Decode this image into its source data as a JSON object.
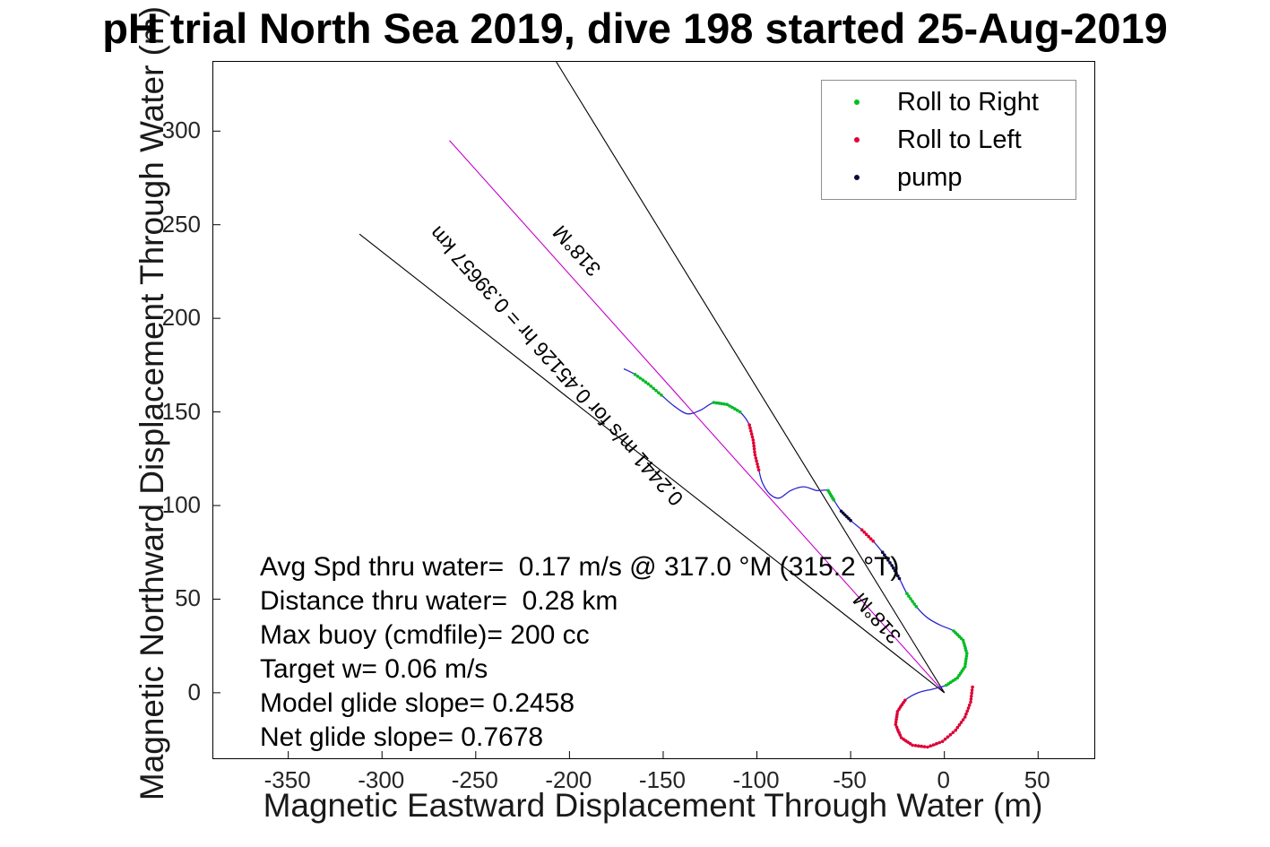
{
  "title": "pH trial North Sea 2019, dive 198 started 25-Aug-2019",
  "chart_data": {
    "type": "scatter",
    "title": "pH trial North Sea 2019, dive 198 started 25-Aug-2019",
    "xlabel": "Magnetic Eastward Displacement Through Water (m)",
    "ylabel": "Magnetic Northward Displacement Through Water (m)",
    "xlim": [
      -390,
      80
    ],
    "ylim": [
      -35,
      337
    ],
    "x_ticks": [
      -350,
      -300,
      -250,
      -200,
      -150,
      -100,
      -50,
      0,
      50
    ],
    "y_ticks": [
      0,
      50,
      100,
      150,
      200,
      250,
      300
    ],
    "grid": false,
    "legend_position": "top-right",
    "track_line_color": "#2a24cf",
    "marker_classes": {
      "g": {
        "label": "Roll to Right",
        "color": "#00bd22"
      },
      "r": {
        "label": "Roll to Left",
        "color": "#e00033"
      },
      "p": {
        "label": "pump",
        "color": "#0a0a3c"
      }
    },
    "track_points": [
      [
        15,
        3,
        "r"
      ],
      [
        14,
        -5,
        "r"
      ],
      [
        11,
        -13,
        "r"
      ],
      [
        6,
        -20,
        "r"
      ],
      [
        -1,
        -26,
        "r"
      ],
      [
        -9,
        -29,
        "r"
      ],
      [
        -17,
        -28,
        "r"
      ],
      [
        -23,
        -24,
        "r"
      ],
      [
        -26,
        -17,
        "r"
      ],
      [
        -25,
        -10,
        "r"
      ],
      [
        -21,
        -4,
        "r"
      ],
      [
        -14,
        0,
        "b"
      ],
      [
        -6,
        2,
        "b"
      ],
      [
        1,
        4,
        "g"
      ],
      [
        7,
        8,
        "g"
      ],
      [
        11,
        14,
        "g"
      ],
      [
        12,
        21,
        "g"
      ],
      [
        10,
        28,
        "g"
      ],
      [
        5,
        33,
        "g"
      ],
      [
        -2,
        36,
        "b"
      ],
      [
        -9,
        40,
        "b"
      ],
      [
        -15,
        46,
        "g"
      ],
      [
        -20,
        53,
        "g"
      ],
      [
        -24,
        61,
        "p"
      ],
      [
        -28,
        68,
        "p"
      ],
      [
        -33,
        75,
        "p"
      ],
      [
        -38,
        81,
        "r"
      ],
      [
        -44,
        87,
        "r"
      ],
      [
        -50,
        92,
        "p"
      ],
      [
        -55,
        97,
        "p"
      ],
      [
        -59,
        103,
        "g"
      ],
      [
        -62,
        108,
        "g"
      ],
      [
        -68,
        108,
        "b"
      ],
      [
        -75,
        110,
        "b"
      ],
      [
        -82,
        108,
        "b"
      ],
      [
        -88,
        104,
        "b"
      ],
      [
        -93,
        106,
        "b"
      ],
      [
        -97,
        112,
        "b"
      ],
      [
        -99,
        119,
        "r"
      ],
      [
        -101,
        127,
        "r"
      ],
      [
        -102,
        135,
        "r"
      ],
      [
        -104,
        143,
        "r"
      ],
      [
        -109,
        150,
        "g"
      ],
      [
        -116,
        154,
        "g"
      ],
      [
        -123,
        155,
        "g"
      ],
      [
        -130,
        151,
        "b"
      ],
      [
        -137,
        149,
        "b"
      ],
      [
        -144,
        153,
        "b"
      ],
      [
        -151,
        159,
        "g"
      ],
      [
        -158,
        165,
        "g"
      ],
      [
        -165,
        170,
        "g"
      ],
      [
        -171,
        173,
        "b"
      ]
    ],
    "reference_lines": [
      {
        "name": "course-made-good-318M",
        "color": "#c400c8",
        "from": [
          0,
          0
        ],
        "to": [
          -264,
          295
        ]
      },
      {
        "name": "bearing-fan-left",
        "color": "#000000",
        "from": [
          0,
          0
        ],
        "to": [
          -312,
          245
        ]
      },
      {
        "name": "bearing-fan-right",
        "color": "#000000",
        "from": [
          0,
          0
        ],
        "to": [
          -207,
          337
        ]
      }
    ]
  },
  "legend": {
    "items": [
      {
        "label": "Roll to Right",
        "color": "#00bd22"
      },
      {
        "label": "Roll to Left",
        "color": "#e00033"
      },
      {
        "label": "pump",
        "color": "#0a0a3c"
      }
    ]
  },
  "annotations": {
    "stats_lines": [
      "Avg Spd thru water=  0.17 m/s @ 317.0 °M (315.2 °T)",
      "Distance thru water=  0.28 km",
      "Max buoy (cmdfile)= 200 cc",
      "Target w= 0.06 m/s",
      "Model glide slope= 0.2458",
      "Net glide slope= 0.7678"
    ],
    "bearing_line_label": "0.2441 m/s for 0.45126 hr =  0.39657 km",
    "bearing_labels": [
      "318°M",
      "318°M"
    ]
  }
}
